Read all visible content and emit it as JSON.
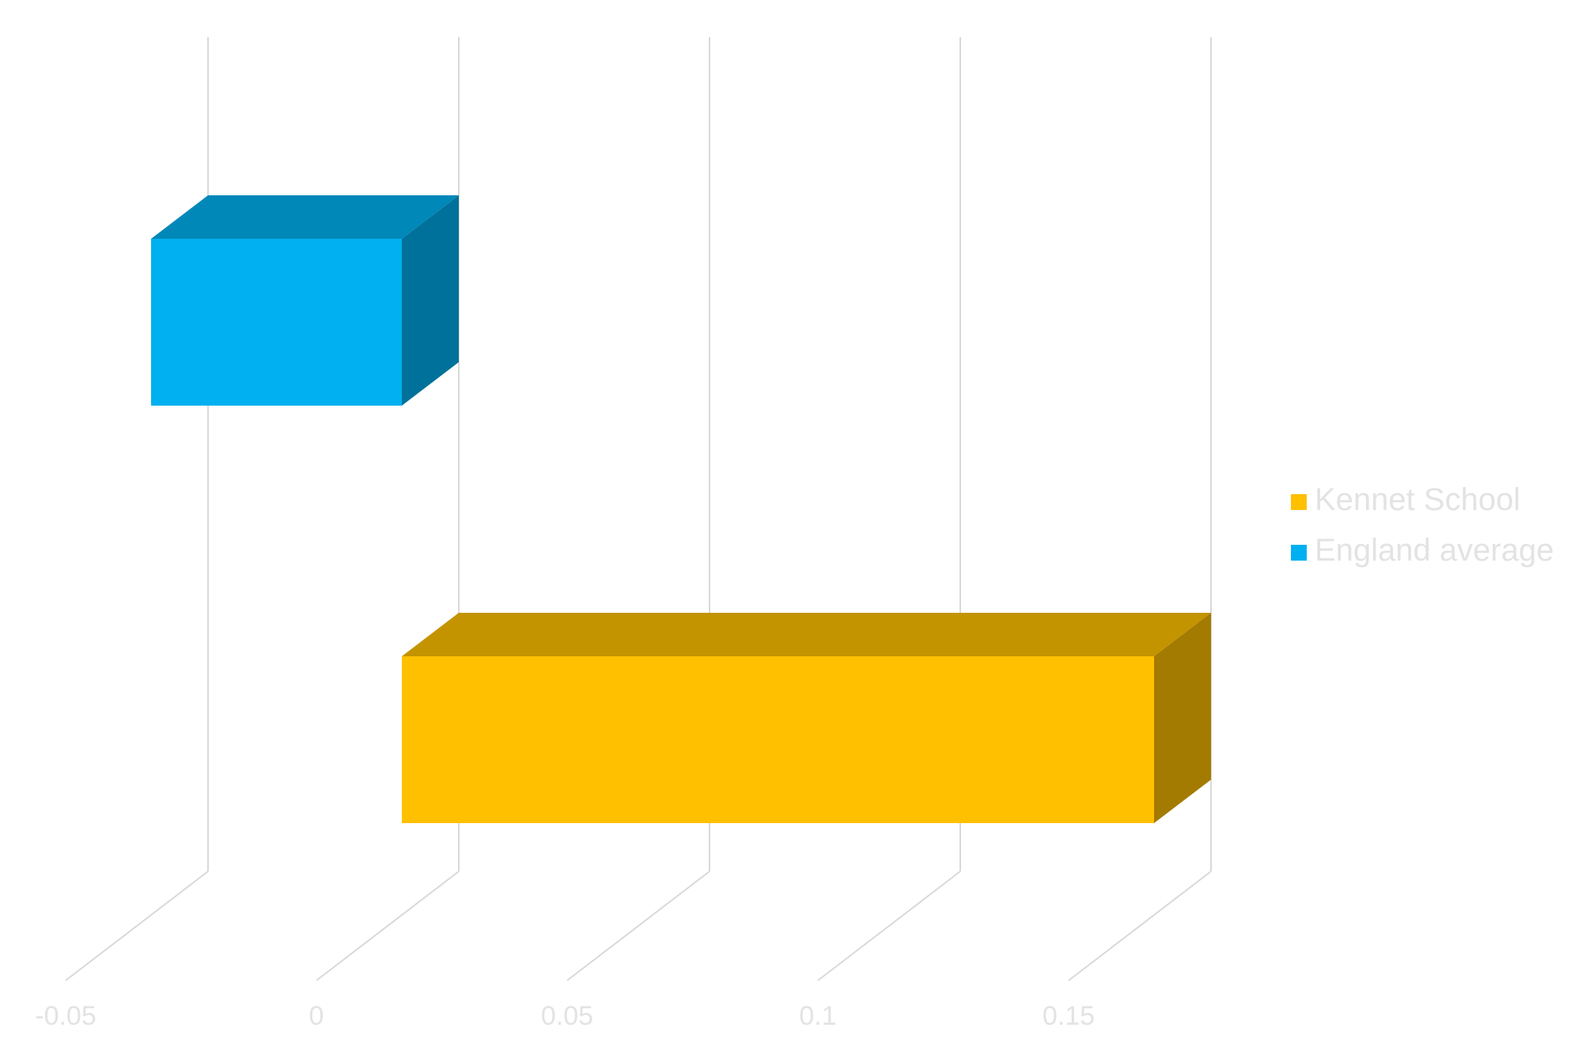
{
  "chart_data": {
    "type": "bar",
    "orientation": "horizontal",
    "three_d": true,
    "title": "",
    "xlabel": "",
    "ylabel": "",
    "xlim": [
      -0.05,
      0.15
    ],
    "x_ticks": [
      -0.05,
      0,
      0.05,
      0.1,
      0.15
    ],
    "x_tick_labels": [
      "-0.05",
      "0",
      "0.05",
      "0.1",
      "0.15"
    ],
    "grid": true,
    "legend_position": "right",
    "categories": [
      "",
      ""
    ],
    "series": [
      {
        "name": "Kennet School",
        "color": "#FFC000",
        "values": [
          0.15,
          null
        ]
      },
      {
        "name": "England average",
        "color": "#00B0F0",
        "values": [
          null,
          0.0
        ]
      }
    ]
  }
}
